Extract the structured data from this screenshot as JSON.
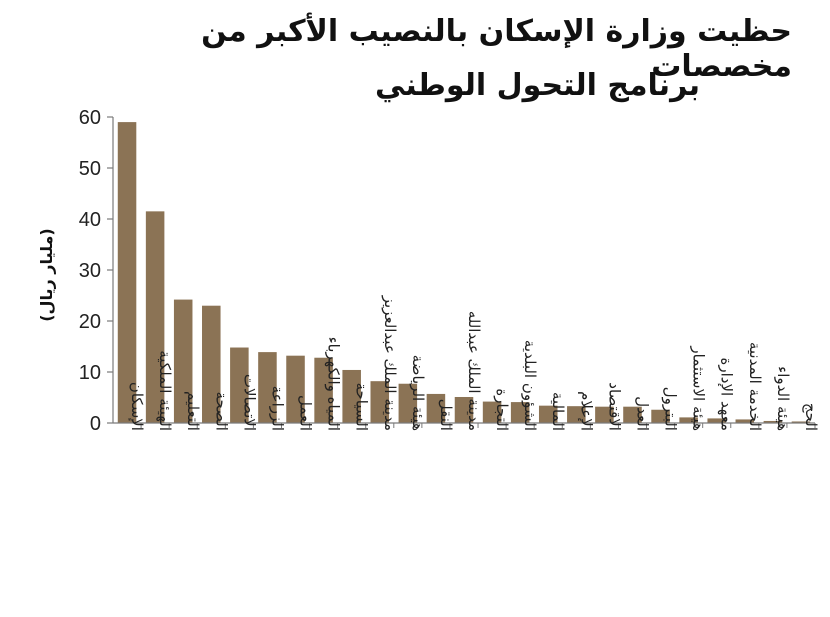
{
  "chart_data": {
    "type": "bar",
    "title_lines": [
      "حظيت وزارة الإسكان بالنصيب الأكبر من مخصصات",
      "برنامج التحول الوطني"
    ],
    "ylabel": "(مليار ريال)",
    "xlabel": "",
    "ylim": [
      0,
      60
    ],
    "yticks": [
      0,
      10,
      20,
      30,
      40,
      50,
      60
    ],
    "grid": false,
    "bar_color": "#8b7355",
    "categories": [
      "الإسكان",
      "الهيئة الملكية",
      "التعليم",
      "الصحة",
      "الاتصالات",
      "الزراعة",
      "العمل",
      "المياه والكهرباء",
      "السياحة",
      "مدينة الملك عبدالعزيز",
      "هيئة الرياضة",
      "النقل",
      "مدينة الملك عبدالله",
      "التجارة",
      "الشؤون البلدية",
      "المالية",
      "الإعلام",
      "الاقتصاد",
      "العدل",
      "البترول",
      "هيئة الاستثمار",
      "معهد الإدارة",
      "الخدمة المدنية",
      "هيئة الدواء",
      "الحج"
    ],
    "values": [
      59,
      41.5,
      24.2,
      23,
      14.8,
      13.9,
      13.2,
      12.8,
      10.4,
      8.2,
      7.7,
      5.7,
      5.1,
      4.2,
      4.1,
      3.4,
      3.3,
      3.2,
      3.2,
      2.6,
      1.1,
      0.9,
      0.7,
      0.4,
      0.3
    ]
  }
}
